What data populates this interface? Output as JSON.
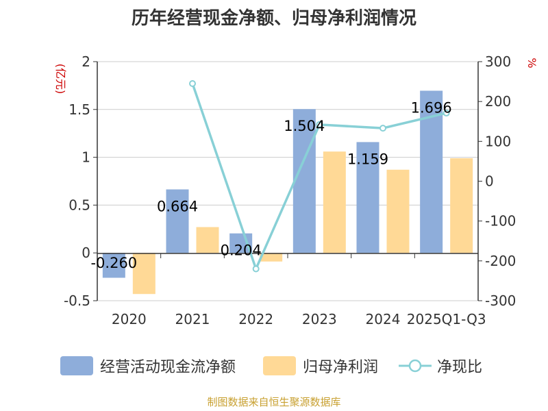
{
  "title": "历年经营现金净额、归母净利润情况",
  "footer": "制图数据来自恒生聚源数据库",
  "colors": {
    "cash": "#8EADDA",
    "profit": "#FFD996",
    "ratio": "#88D0D6",
    "axis_unit": "#CC0000"
  },
  "chart_data": {
    "type": "bar",
    "categories": [
      "2020",
      "2021",
      "2022",
      "2023",
      "2024",
      "2025Q1-Q3"
    ],
    "left_axis": {
      "unit": "(亿元)",
      "ticks": [
        "2",
        "1.5",
        "1",
        "0.5",
        "0",
        "-0.5"
      ],
      "ylim": [
        -0.5,
        2
      ]
    },
    "right_axis": {
      "unit": "%",
      "ticks": [
        "300",
        "200",
        "100",
        "0",
        "-100",
        "-200",
        "-300"
      ],
      "ylim": [
        -300,
        300
      ]
    },
    "series": [
      {
        "name": "经营活动现金流净额",
        "type": "bar",
        "axis": "left",
        "values": [
          -0.26,
          0.664,
          0.204,
          1.504,
          1.159,
          1.696
        ],
        "labels": [
          "-0.260",
          "0.664",
          "0.204",
          "1.504",
          "1.159",
          "1.696"
        ]
      },
      {
        "name": "归母净利润",
        "type": "bar",
        "axis": "left",
        "values": [
          -0.43,
          0.27,
          -0.09,
          1.06,
          0.87,
          0.99
        ]
      },
      {
        "name": "净现比",
        "type": "line",
        "axis": "right",
        "values": [
          null,
          245,
          -220,
          142,
          133,
          171
        ]
      }
    ]
  }
}
